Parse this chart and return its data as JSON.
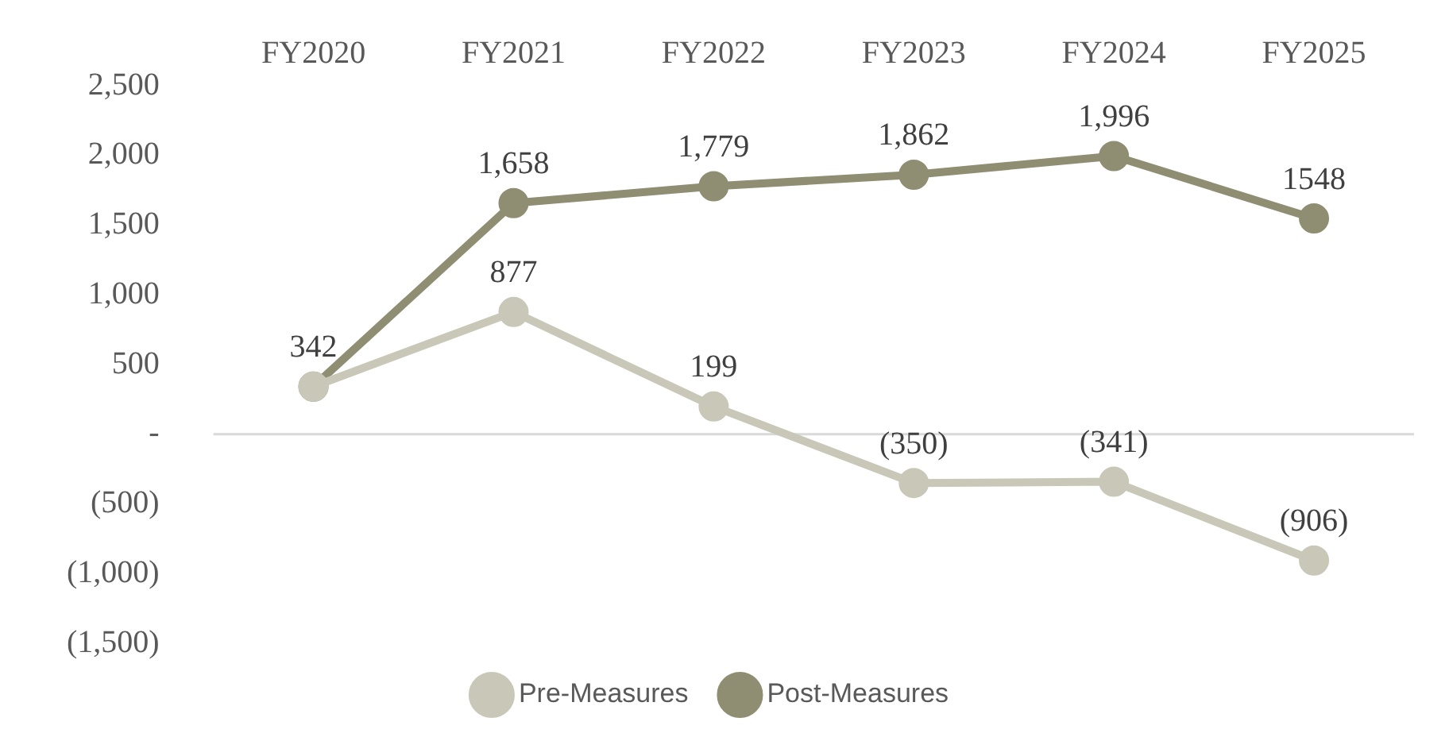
{
  "chart_data": {
    "type": "line",
    "categories": [
      "FY2020",
      "FY2021",
      "FY2022",
      "FY2023",
      "FY2024",
      "FY2025"
    ],
    "series": [
      {
        "name": "Pre-Measures",
        "color": "#c9c8b8",
        "values": [
          342,
          877,
          199,
          -350,
          -341,
          -906
        ],
        "value_labels": [
          null,
          "877",
          "199",
          "(350)",
          "(341)",
          "(906)"
        ]
      },
      {
        "name": "Post-Measures",
        "color": "#8f8d72",
        "values": [
          342,
          1658,
          1779,
          1862,
          1996,
          1548
        ],
        "value_labels": [
          "342",
          "1,658",
          "1,779",
          "1,862",
          "1,996",
          "1548"
        ]
      }
    ],
    "ylim": [
      -1500,
      2500
    ],
    "yticks": [
      {
        "value": -1500,
        "label": "(1,500)"
      },
      {
        "value": -1000,
        "label": "(1,000)"
      },
      {
        "value": -500,
        "label": "(500)"
      },
      {
        "value": 0,
        "label": "-"
      },
      {
        "value": 500,
        "label": "500"
      },
      {
        "value": 1000,
        "label": "1,000"
      },
      {
        "value": 1500,
        "label": "1,500"
      },
      {
        "value": 2000,
        "label": "2,000"
      },
      {
        "value": 2500,
        "label": "2,500"
      }
    ],
    "ref_lines": [
      {
        "axis": "y",
        "value": 0,
        "color": "#d9d9d9"
      }
    ],
    "grid": false,
    "legend": "bottom",
    "marker": "circle",
    "line_style": "solid"
  }
}
